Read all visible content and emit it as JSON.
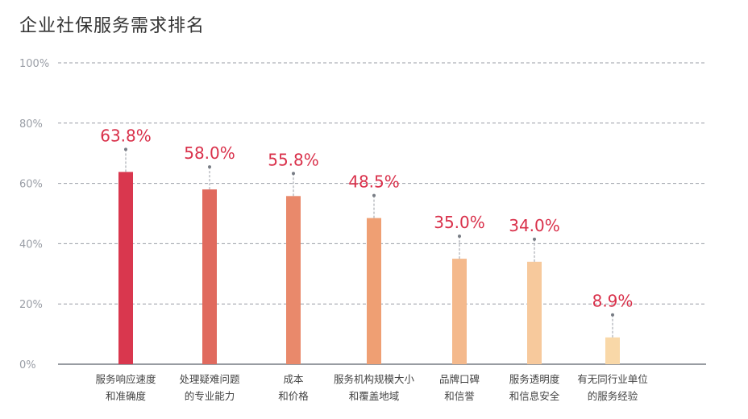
{
  "chart_data": {
    "type": "bar",
    "title": "企业社保服务需求排名",
    "categories": [
      [
        "服务响应速度",
        "和准确度"
      ],
      [
        "处理疑难问题",
        "的专业能力"
      ],
      [
        "成本",
        "和价格"
      ],
      [
        "服务机构规模大小",
        "和覆盖地域"
      ],
      [
        "品牌口碑",
        "和信誉"
      ],
      [
        "服务透明度",
        "和信息安全"
      ],
      [
        "有无同行业单位",
        "的服务经验"
      ]
    ],
    "values": [
      63.8,
      58.0,
      55.8,
      48.5,
      35.0,
      34.0,
      8.9
    ],
    "value_labels": [
      "63.8%",
      "58.0%",
      "55.8%",
      "48.5%",
      "35.0%",
      "34.0%",
      "8.9%"
    ],
    "bar_colors": [
      "#d9374e",
      "#e06a5e",
      "#e9896b",
      "#ef9f73",
      "#f4b98c",
      "#f7c99c",
      "#f9d8a8"
    ],
    "label_color": "#d9304a",
    "ylim": [
      0,
      100
    ],
    "yticks": [
      "0%",
      "20%",
      "40%",
      "60%",
      "80%",
      "100%"
    ],
    "grid": true,
    "legend": "none"
  }
}
